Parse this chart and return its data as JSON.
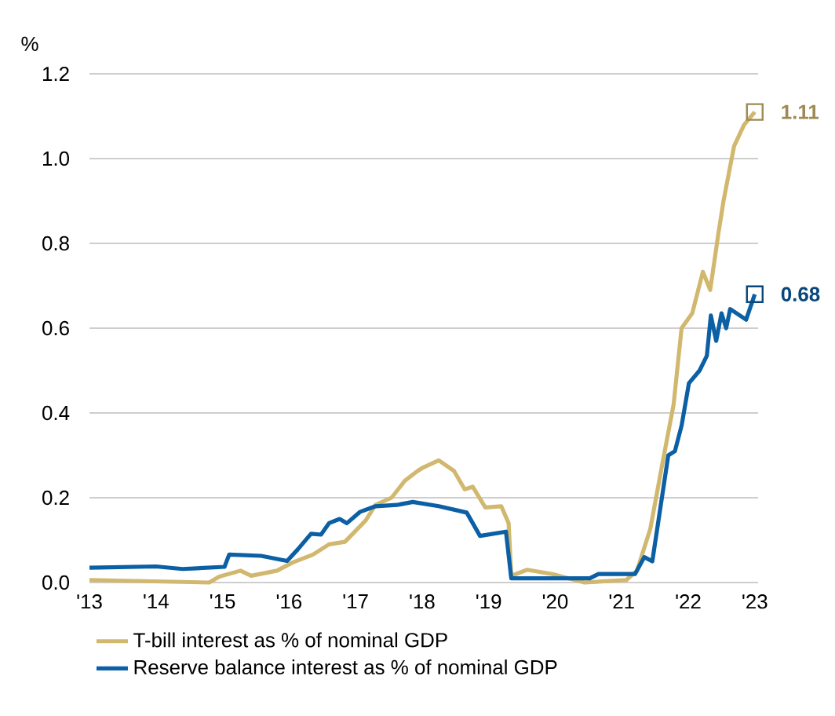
{
  "chart_data": {
    "type": "line",
    "ylabel": "%",
    "xlim": [
      2013,
      2023.05
    ],
    "ylim": [
      0,
      1.2
    ],
    "xticks": [
      {
        "value": 2013,
        "label": "'13"
      },
      {
        "value": 2014,
        "label": "'14"
      },
      {
        "value": 2015,
        "label": "'15"
      },
      {
        "value": 2016,
        "label": "'16"
      },
      {
        "value": 2017,
        "label": "'17"
      },
      {
        "value": 2018,
        "label": "'18"
      },
      {
        "value": 2019,
        "label": "'19"
      },
      {
        "value": 2020,
        "label": "'20"
      },
      {
        "value": 2021,
        "label": "'21"
      },
      {
        "value": 2022,
        "label": "'22"
      },
      {
        "value": 2023,
        "label": "'23"
      }
    ],
    "yticks": [
      {
        "value": 0,
        "label": "0.0"
      },
      {
        "value": 0.2,
        "label": "0.2"
      },
      {
        "value": 0.4,
        "label": "0.4"
      },
      {
        "value": 0.6,
        "label": "0.6"
      },
      {
        "value": 0.8,
        "label": "0.8"
      },
      {
        "value": 1.0,
        "label": "1.0"
      },
      {
        "value": 1.2,
        "label": "1.2"
      }
    ],
    "grid": "y",
    "legend": "bottom",
    "line_style": "solid",
    "series": [
      {
        "name": "T-bill interest as % of nominal GDP",
        "color": "#d1b86e",
        "x": [
          2013.0,
          2014.8,
          2014.95,
          2015.27,
          2015.43,
          2015.82,
          2016.05,
          2016.36,
          2016.6,
          2016.84,
          2017.15,
          2017.3,
          2017.54,
          2017.74,
          2017.93,
          2018.0,
          2018.25,
          2018.48,
          2018.64,
          2018.76,
          2018.95,
          2019.19,
          2019.3,
          2019.34,
          2019.58,
          2019.96,
          2020.44,
          2021.07,
          2021.23,
          2021.43,
          2021.62,
          2021.78,
          2021.9,
          2022.06,
          2022.22,
          2022.33,
          2022.45,
          2022.53,
          2022.69,
          2022.84,
          2023.0
        ],
        "values": [
          0.006,
          0.0,
          0.014,
          0.028,
          0.016,
          0.028,
          0.047,
          0.066,
          0.09,
          0.096,
          0.146,
          0.183,
          0.2,
          0.24,
          0.263,
          0.27,
          0.288,
          0.263,
          0.22,
          0.226,
          0.177,
          0.18,
          0.14,
          0.016,
          0.03,
          0.02,
          0.0,
          0.006,
          0.028,
          0.127,
          0.288,
          0.42,
          0.6,
          0.635,
          0.733,
          0.69,
          0.82,
          0.9,
          1.03,
          1.08,
          1.11
        ],
        "value_labels": [
          null,
          null,
          null,
          null,
          null,
          null,
          null,
          null,
          null,
          null,
          null,
          null,
          null,
          null,
          null,
          null,
          null,
          null,
          null,
          null,
          null,
          null,
          null,
          null,
          null,
          null,
          null,
          null,
          null,
          null,
          null,
          null,
          null,
          null,
          null,
          null,
          null,
          null,
          null,
          null,
          "1.11"
        ]
      },
      {
        "name": "Reserve balance interest as % of nominal GDP",
        "color": "#0b5fa5",
        "x": [
          2013.0,
          2014.0,
          2014.4,
          2015.03,
          2015.1,
          2015.58,
          2015.97,
          2016.13,
          2016.33,
          2016.48,
          2016.6,
          2016.76,
          2016.87,
          2017.07,
          2017.3,
          2017.62,
          2017.86,
          2018.25,
          2018.67,
          2018.87,
          2019.26,
          2019.34,
          2020.52,
          2020.65,
          2021.2,
          2021.34,
          2021.46,
          2021.7,
          2021.8,
          2021.9,
          2022.01,
          2022.17,
          2022.28,
          2022.34,
          2022.42,
          2022.5,
          2022.57,
          2022.63,
          2022.87,
          2023.0
        ],
        "values": [
          0.035,
          0.038,
          0.032,
          0.037,
          0.066,
          0.063,
          0.051,
          0.078,
          0.115,
          0.113,
          0.14,
          0.15,
          0.14,
          0.167,
          0.18,
          0.183,
          0.19,
          0.18,
          0.165,
          0.11,
          0.12,
          0.01,
          0.01,
          0.02,
          0.02,
          0.06,
          0.05,
          0.3,
          0.31,
          0.37,
          0.47,
          0.5,
          0.535,
          0.63,
          0.57,
          0.635,
          0.6,
          0.645,
          0.62,
          0.68
        ],
        "value_labels": [
          null,
          null,
          null,
          null,
          null,
          null,
          null,
          null,
          null,
          null,
          null,
          null,
          null,
          null,
          null,
          null,
          null,
          null,
          null,
          null,
          null,
          null,
          null,
          null,
          null,
          null,
          null,
          null,
          null,
          null,
          null,
          null,
          null,
          null,
          null,
          null,
          null,
          null,
          null,
          "0.68"
        ]
      }
    ]
  }
}
